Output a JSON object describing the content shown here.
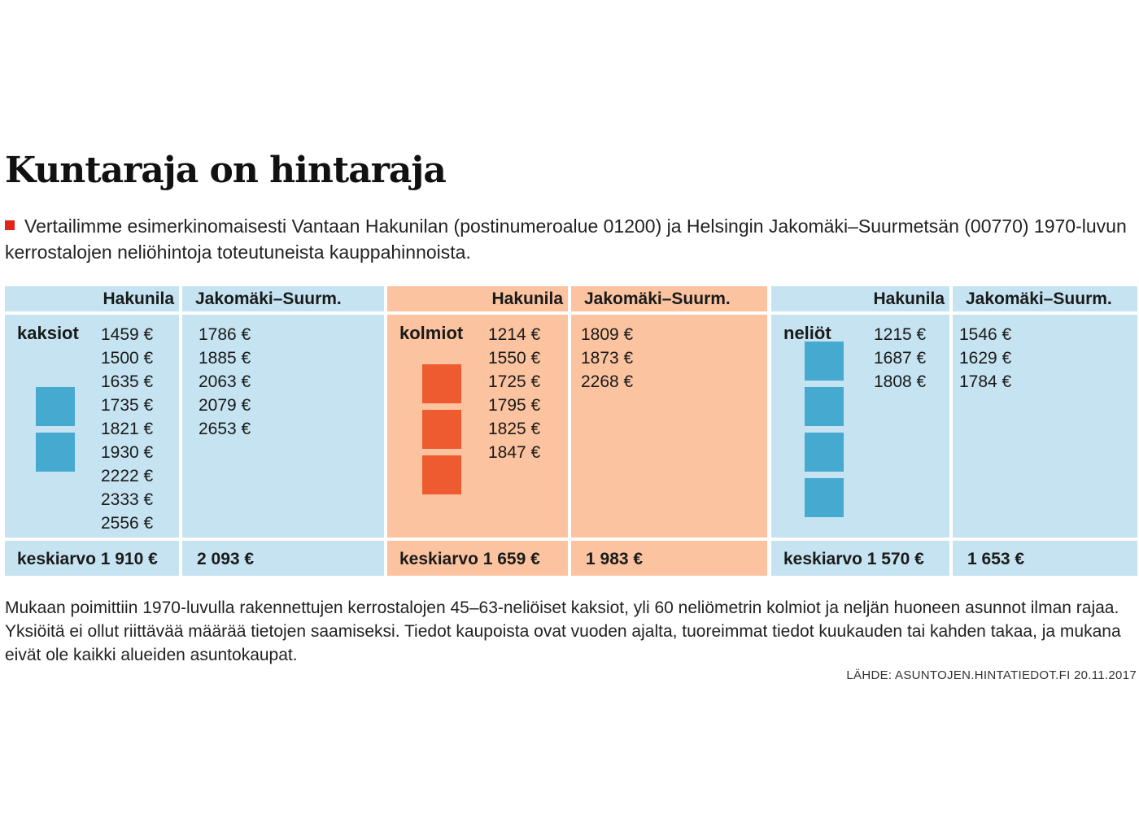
{
  "title": "Kuntaraja on hintaraja",
  "intro": "Vertailimme esimerkinomaisesti Vantaan Hakunilan (postinumeroalue 01200) ja Helsingin Jakomäki–Suurmetsän (00770) 1970-luvun kerrostalojen neliöhintoja toteutuneista kauppahinnoista.",
  "colors": {
    "blue_bg": "#c5e3f1",
    "orange_bg": "#fbc3a0",
    "blue_marker": "#46a9cf",
    "orange_marker": "#ef5b30",
    "bullet": "#e2231a"
  },
  "chart_data": {
    "type": "table",
    "columns": [
      "Hakunila",
      "Jakomäki–Suurm."
    ],
    "groups": [
      {
        "room_label": "kaksiot",
        "hakunila_prices": [
          "1459 €",
          "1500 €",
          "1635 €",
          "1735 €",
          "1821 €",
          "1930 €",
          "2222 €",
          "2333 €",
          "2556 €"
        ],
        "jakomaki_prices": [
          "1786 €",
          "1885 €",
          "2063 €",
          "2079 €",
          "2653 €"
        ],
        "hakunila_average_label": "keskiarvo 1 910 €",
        "jakomaki_average_label": "2 093 €",
        "hakunila_average": 1910,
        "jakomaki_average": 2093,
        "marker_count": 2,
        "theme": "blue"
      },
      {
        "room_label": "kolmiot",
        "hakunila_prices": [
          "1214 €",
          "1550 €",
          "1725 €",
          "1795 €",
          "1825 €",
          "1847 €"
        ],
        "jakomaki_prices": [
          "1809 €",
          "1873 €",
          "2268 €"
        ],
        "hakunila_average_label": "keskiarvo 1 659 €",
        "jakomaki_average_label": "1 983 €",
        "hakunila_average": 1659,
        "jakomaki_average": 1983,
        "marker_count": 3,
        "theme": "orange"
      },
      {
        "room_label": "neliöt",
        "hakunila_prices": [
          "1215 €",
          "1687 €",
          "1808 €"
        ],
        "jakomaki_prices": [
          "1546 €",
          "1629 €",
          "1784 €"
        ],
        "hakunila_average_label": "keskiarvo 1 570 €",
        "jakomaki_average_label": "1 653 €",
        "hakunila_average": 1570,
        "jakomaki_average": 1653,
        "marker_count": 4,
        "theme": "blue"
      }
    ]
  },
  "note": "Mukaan poimittiin 1970-luvulla rakennettujen kerrostalojen 45–63-neliöiset kaksiot, yli 60 neliömetrin kolmiot ja neljän huoneen asunnot ilman rajaa. Yksiöitä ei ollut riittävää määrää tietojen saamiseksi. Tiedot kaupoista ovat vuoden ajalta, tuoreimmat tiedot kuukauden tai kahden takaa, ja mukana eivät ole kaikki alueiden asuntokaupat.",
  "source": "LÄHDE: ASUNTOJEN.HINTATIEDOT.FI 20.11.2017"
}
